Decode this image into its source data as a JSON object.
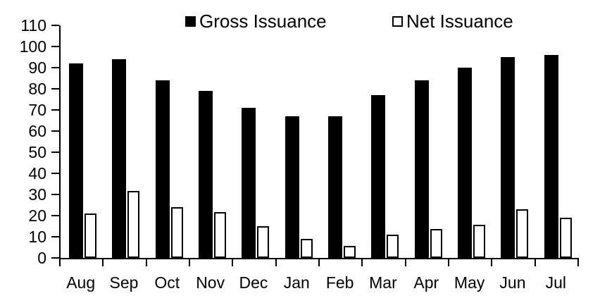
{
  "chart_data": {
    "type": "bar",
    "title": "",
    "xlabel": "",
    "ylabel": "",
    "categories": [
      "Aug",
      "Sep",
      "Oct",
      "Nov",
      "Dec",
      "Jan",
      "Feb",
      "Mar",
      "Apr",
      "May",
      "Jun",
      "Jul"
    ],
    "series": [
      {
        "name": "Gross Issuance",
        "style": "filled",
        "fill_color": "#000000",
        "values": [
          92,
          94,
          84,
          79,
          71,
          67,
          67,
          77,
          84,
          90,
          95,
          96
        ]
      },
      {
        "name": "Net Issuance",
        "style": "outlined",
        "fill_color": "#ffffff",
        "border_color": "#000000",
        "values": [
          21,
          31.5,
          24,
          21.5,
          15,
          9,
          5.5,
          11,
          13.5,
          15.5,
          23,
          19
        ]
      }
    ],
    "ylim": [
      0,
      110
    ],
    "yticks": [
      0,
      10,
      20,
      30,
      40,
      50,
      60,
      70,
      80,
      90,
      100,
      110
    ],
    "grid": false,
    "legend_position": "top"
  },
  "colors": {
    "background": "#ffffff",
    "axis": "#000000",
    "gross_bar": "#000000",
    "net_bar_fill": "#ffffff",
    "net_bar_border": "#000000",
    "text": "#000000"
  }
}
